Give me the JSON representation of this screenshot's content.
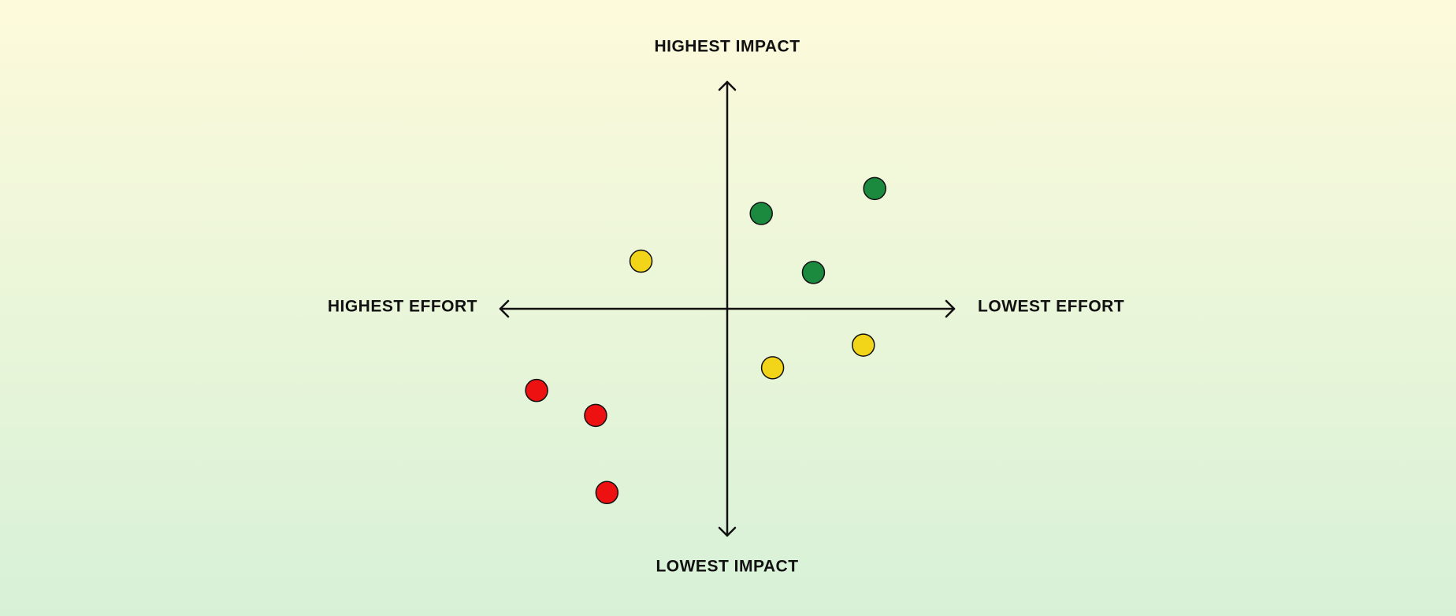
{
  "chart_data": {
    "type": "scatter",
    "labels": {
      "top": "HIGHEST IMPACT",
      "bottom": "LOWEST IMPACT",
      "left": "HIGHEST EFFORT",
      "right": "LOWEST EFFORT"
    },
    "xlim": [
      -1,
      1
    ],
    "ylim": [
      -1,
      1
    ],
    "series": [
      {
        "color": "#1b8a3e",
        "x": [
          0.65,
          0.15,
          0.38
        ],
        "y": [
          0.53,
          0.42,
          0.16
        ]
      },
      {
        "color": "#f2d418",
        "x": [
          -0.38,
          0.6,
          0.2
        ],
        "y": [
          0.21,
          -0.16,
          -0.26
        ]
      },
      {
        "color": "#ee1111",
        "x": [
          -0.84,
          -0.58,
          -0.53
        ],
        "y": [
          -0.36,
          -0.47,
          -0.81
        ]
      }
    ]
  }
}
